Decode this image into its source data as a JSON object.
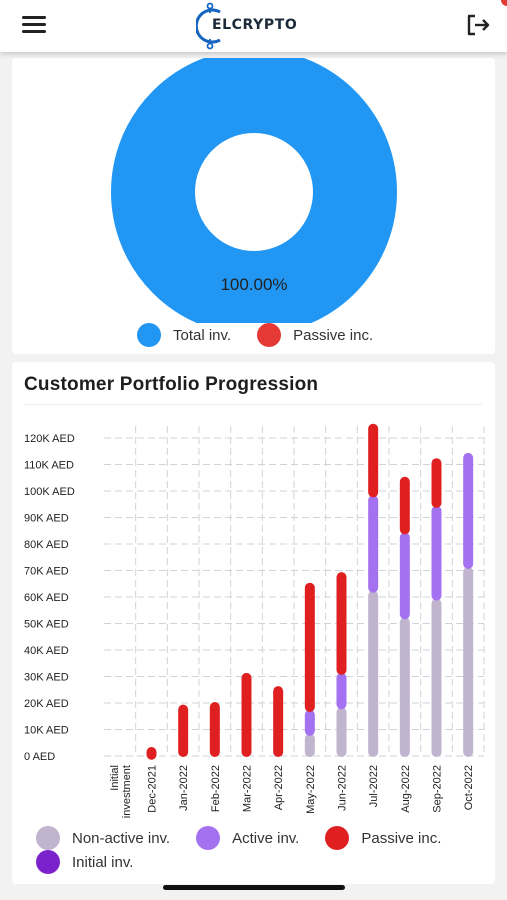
{
  "header": {
    "logo_text": "ELCRYPTO",
    "menu_icon": "hamburger-menu-icon",
    "logout_icon": "logout-icon"
  },
  "colors": {
    "total_inv": "#2196f3",
    "passive_inc": "#e53935",
    "bar_passive": "#e02020",
    "bar_active": "#a472f0",
    "bar_nonactive": "#c1b4cf",
    "bar_initial": "#7b22cc"
  },
  "donut": {
    "label": "100.00%",
    "legend": [
      {
        "label": "Total inv.",
        "color": "#2196f3"
      },
      {
        "label": "Passive inc.",
        "color": "#e53935"
      }
    ]
  },
  "portfolio": {
    "title": "Customer Portfolio Progression",
    "legend": [
      {
        "label": "Non-active inv.",
        "color": "#c1b4cf"
      },
      {
        "label": "Active inv.",
        "color": "#a472f0"
      },
      {
        "label": "Passive inc.",
        "color": "#e02020"
      },
      {
        "label": "Initial inv.",
        "color": "#7b22cc"
      }
    ]
  },
  "chart_data": [
    {
      "type": "pie",
      "labels": [
        "Total inv.",
        "Passive inc."
      ],
      "values": [
        100.0,
        0.0
      ],
      "slice_label": "100.00%",
      "legend_position": "bottom"
    },
    {
      "type": "bar",
      "stacked": true,
      "title": "Customer Portfolio Progression",
      "categories": [
        "Initial investment",
        "Dec-2021",
        "Jan-2022",
        "Feb-2022",
        "Mar-2022",
        "Apr-2022",
        "May-2022",
        "Jun-2022",
        "Jul-2022",
        "Aug-2022",
        "Sep-2022",
        "Oct-2022"
      ],
      "series": [
        {
          "name": "Non-active inv.",
          "values": [
            0,
            0,
            0,
            0,
            0,
            0,
            8000,
            18000,
            62000,
            52000,
            59000,
            71000
          ]
        },
        {
          "name": "Active inv.",
          "values": [
            0,
            0,
            0,
            0,
            0,
            0,
            9000,
            13000,
            36000,
            32000,
            35000,
            43000
          ]
        },
        {
          "name": "Passive inc.",
          "values": [
            0,
            2000,
            19000,
            20000,
            31000,
            26000,
            48000,
            38000,
            27000,
            21000,
            18000,
            0
          ]
        },
        {
          "name": "Initial inv.",
          "values": [
            0,
            0,
            0,
            0,
            0,
            0,
            0,
            0,
            0,
            0,
            0,
            0
          ]
        }
      ],
      "yticks": [
        "0 AED",
        "10K AED",
        "20K AED",
        "30K AED",
        "40K AED",
        "50K AED",
        "60K AED",
        "70K AED",
        "80K AED",
        "90K AED",
        "100K AED",
        "110K AED",
        "120K AED"
      ],
      "ylim": [
        0,
        120000
      ],
      "grid": true,
      "legend_position": "bottom"
    }
  ]
}
